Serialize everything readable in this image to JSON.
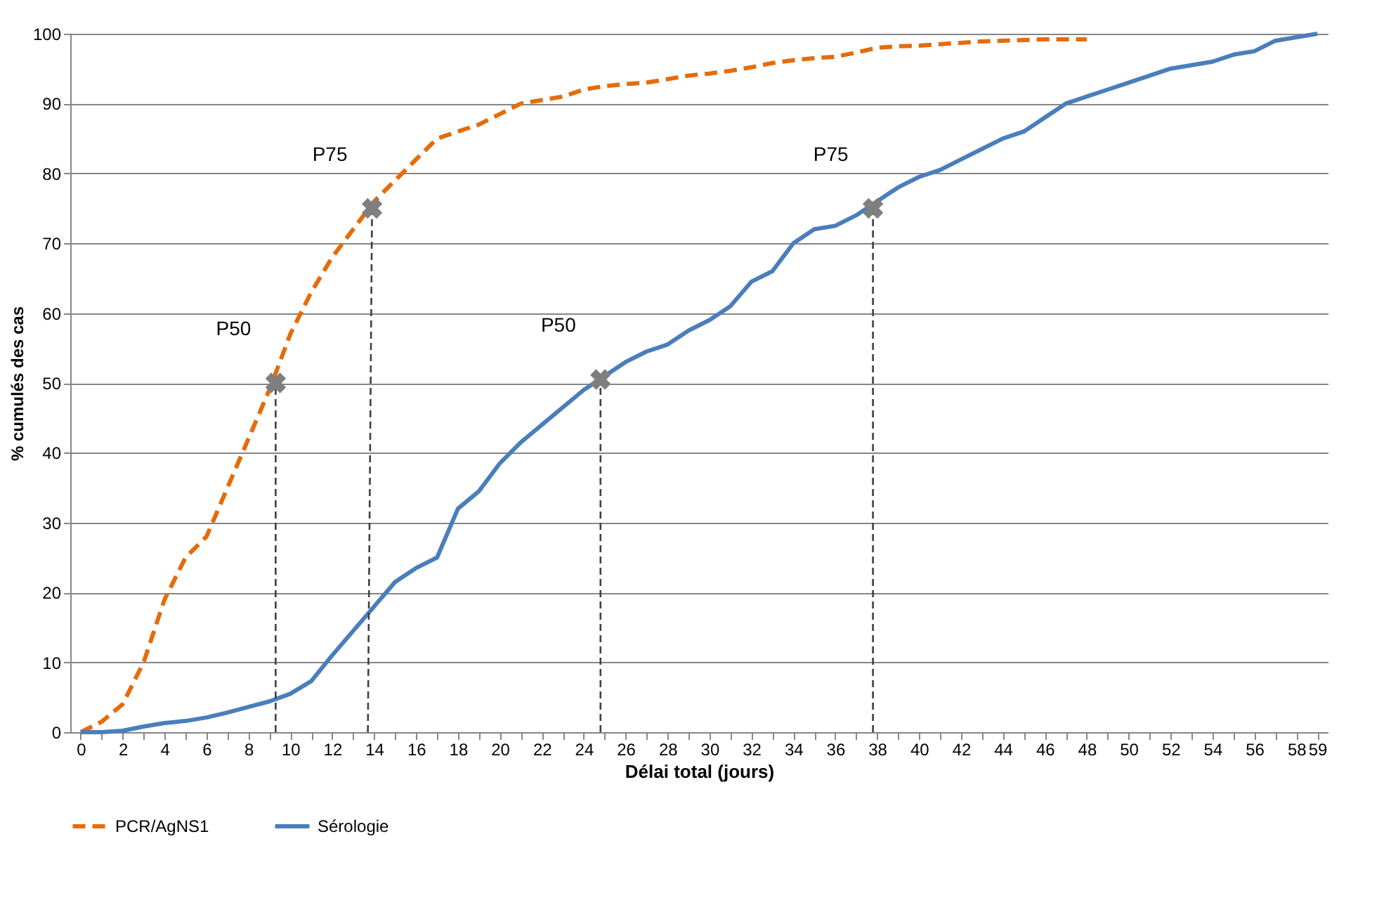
{
  "chart_data": {
    "type": "line",
    "xlabel": "Délai total (jours)",
    "ylabel": "% cumulés des cas",
    "xlim": [
      -0.5,
      59.5
    ],
    "xticks": [
      0,
      {
        "value": 1,
        "label": null
      },
      2,
      {
        "value": 3,
        "label": null
      },
      4,
      {
        "value": 5,
        "label": null
      },
      6,
      {
        "value": 7,
        "label": null
      },
      8,
      {
        "value": 9,
        "label": null
      },
      10,
      {
        "value": 11,
        "label": null
      },
      12,
      {
        "value": 13,
        "label": null
      },
      14,
      {
        "value": 15,
        "label": null
      },
      16,
      {
        "value": 17,
        "label": null
      },
      18,
      {
        "value": 19,
        "label": null
      },
      20,
      {
        "value": 21,
        "label": null
      },
      22,
      {
        "value": 23,
        "label": null
      },
      24,
      {
        "value": 25,
        "label": null
      },
      26,
      {
        "value": 27,
        "label": null
      },
      28,
      {
        "value": 29,
        "label": null
      },
      30,
      {
        "value": 31,
        "label": null
      },
      32,
      {
        "value": 33,
        "label": null
      },
      34,
      {
        "value": 35,
        "label": null
      },
      36,
      {
        "value": 37,
        "label": null
      },
      38,
      {
        "value": 39,
        "label": null
      },
      40,
      {
        "value": 41,
        "label": null
      },
      42,
      {
        "value": 43,
        "label": null
      },
      44,
      {
        "value": 45,
        "label": null
      },
      46,
      {
        "value": 47,
        "label": null
      },
      48,
      {
        "value": 49,
        "label": null
      },
      50,
      {
        "value": 51,
        "label": null
      },
      52,
      {
        "value": 53,
        "label": null
      },
      54,
      {
        "value": 55,
        "label": null
      },
      56,
      {
        "value": 57,
        "label": null
      },
      58,
      59
    ],
    "ylim": [
      0,
      100
    ],
    "yticks": [
      0,
      10,
      20,
      30,
      40,
      50,
      60,
      70,
      80,
      90,
      100
    ],
    "grid": "y",
    "legend": "bottom",
    "series": [
      {
        "name": "PCR/AgNS1",
        "color": "#e46c0a",
        "line_style": "dashed",
        "marker": "none",
        "x": [
          0,
          1,
          2,
          3,
          4,
          5,
          6,
          7,
          8,
          9,
          10,
          11,
          12,
          13,
          14,
          15,
          16,
          17,
          18,
          19,
          20,
          21,
          22,
          23,
          24,
          25,
          26,
          27,
          28,
          29,
          30,
          31,
          32,
          33,
          34,
          35,
          36,
          37,
          38,
          39,
          40,
          41,
          42,
          43,
          44,
          45,
          46,
          47,
          48
        ],
        "values": [
          0,
          1.5,
          4,
          10,
          19,
          25,
          28,
          35,
          42,
          49,
          57,
          63,
          68,
          72,
          76,
          79,
          82,
          85,
          86,
          87,
          88.5,
          90,
          90.5,
          91,
          92,
          92.5,
          92.8,
          93,
          93.5,
          94,
          94.3,
          94.7,
          95.2,
          95.8,
          96.2,
          96.5,
          96.7,
          97.3,
          98,
          98.2,
          98.3,
          98.5,
          98.7,
          98.9,
          99,
          99.1,
          99.2,
          99.2,
          99.2
        ]
      },
      {
        "name": "Sérologie",
        "color": "#4a7ebb",
        "line_style": "solid",
        "marker": "none",
        "x": [
          0,
          1,
          2,
          3,
          4,
          5,
          6,
          7,
          8,
          9,
          10,
          11,
          12,
          13,
          14,
          15,
          16,
          17,
          18,
          19,
          20,
          21,
          22,
          23,
          24,
          25,
          26,
          27,
          28,
          29,
          30,
          31,
          32,
          33,
          34,
          35,
          36,
          37,
          38,
          39,
          40,
          41,
          42,
          43,
          44,
          45,
          46,
          47,
          48,
          49,
          50,
          51,
          52,
          53,
          54,
          55,
          56,
          57,
          58,
          59
        ],
        "values": [
          0,
          0,
          0.2,
          0.8,
          1.3,
          1.6,
          2.1,
          2.8,
          3.6,
          4.4,
          5.5,
          7.3,
          11,
          14.5,
          18,
          21.5,
          23.5,
          25,
          32,
          34.5,
          38.5,
          41.5,
          44,
          46.5,
          49,
          51,
          53,
          54.5,
          55.5,
          57.5,
          59,
          61,
          64.5,
          66,
          70,
          72,
          72.5,
          74,
          76,
          78,
          79.5,
          80.5,
          82,
          83.5,
          85,
          86,
          88,
          90,
          91,
          92,
          93,
          94,
          95,
          95.5,
          96,
          97,
          97.5,
          99,
          99.5,
          100
        ]
      },
      {
        "type": "line",
        "color": "#404040",
        "line_style": "dashed",
        "x": [
          9.3,
          9.3
        ],
        "values": [
          0,
          50
        ]
      },
      {
        "type": "line",
        "color": "#404040",
        "line_style": "dashed",
        "x": [
          13.7,
          13.9
        ],
        "values": [
          0,
          75
        ]
      },
      {
        "type": "line",
        "color": "#404040",
        "line_style": "dashed",
        "x": [
          24.8,
          24.8
        ],
        "values": [
          0,
          50.5
        ]
      },
      {
        "type": "line",
        "color": "#404040",
        "line_style": "dashed",
        "x": [
          37.8,
          37.8
        ],
        "values": [
          0,
          75
        ]
      },
      {
        "type": "scatter",
        "color": "#7f7f7f",
        "marker": "cross",
        "x": [
          9.3,
          13.9,
          24.8,
          37.8
        ],
        "values": [
          50,
          75,
          50.5,
          75
        ]
      }
    ],
    "annotations": [
      {
        "text": "P50",
        "x": 9.3,
        "y": 50
      },
      {
        "text": "P75",
        "x": 13.9,
        "y": 75
      },
      {
        "text": "P50",
        "x": 24.8,
        "y": 50.5
      },
      {
        "text": "P75",
        "x": 37.8,
        "y": 75
      }
    ]
  }
}
